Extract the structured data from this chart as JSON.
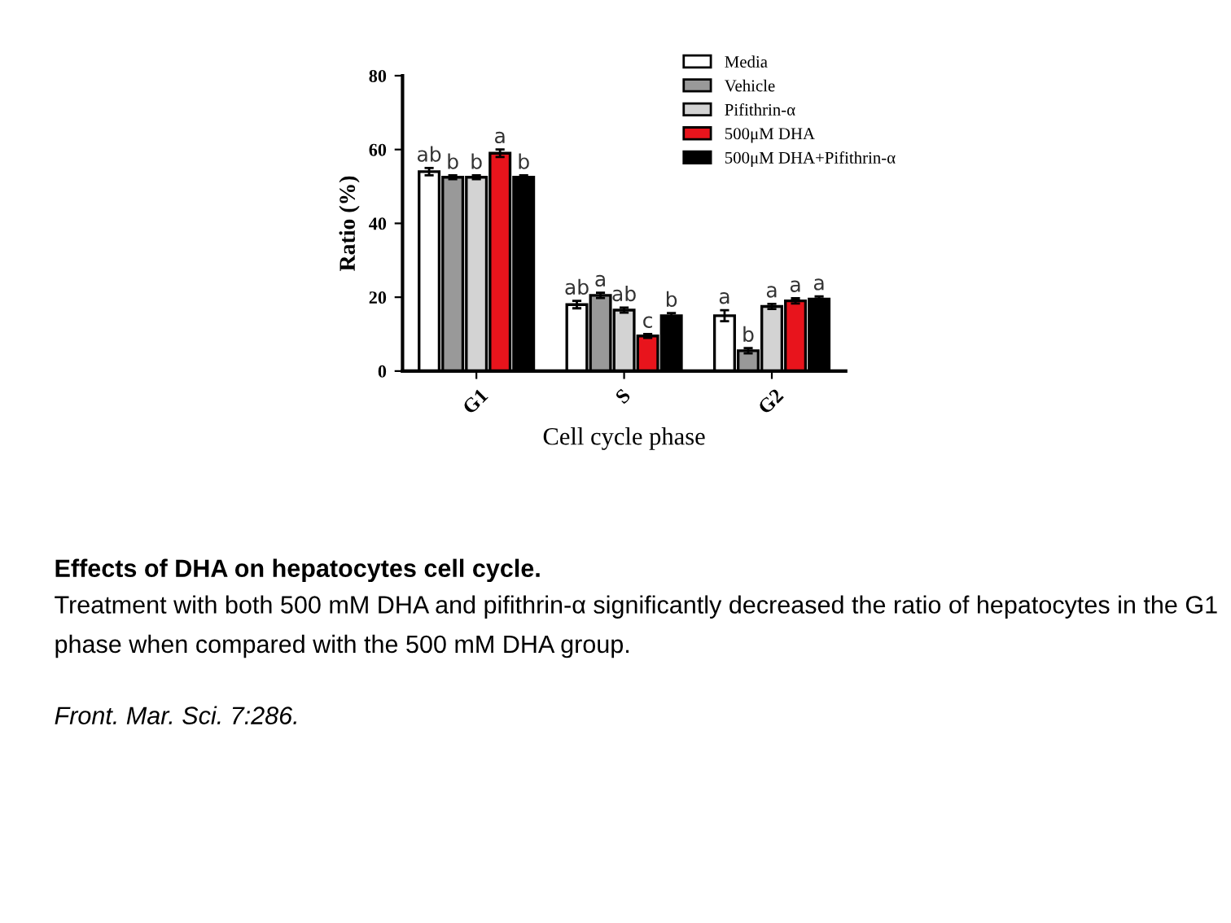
{
  "chart_data": {
    "type": "bar",
    "title": "Effects of DHA on hepatocytes cell cycle.",
    "xlabel": "Cell cycle phase",
    "ylabel": "Ratio (%)",
    "categories": [
      "G1",
      "S",
      "G2"
    ],
    "series": [
      {
        "name": "Media",
        "color": "#ffffff",
        "values": [
          54,
          18,
          15
        ],
        "errors": [
          1,
          1,
          1.5
        ],
        "value_labels": [
          "ab",
          "ab",
          "a"
        ]
      },
      {
        "name": "Vehicle",
        "color": "#999999",
        "values": [
          52.5,
          20.5,
          5.5
        ],
        "errors": [
          0.5,
          0.7,
          0.7
        ],
        "value_labels": [
          "b",
          "a",
          "b"
        ]
      },
      {
        "name": "Pifithrin-α",
        "color": "#d3d3d3",
        "values": [
          52.5,
          16.5,
          17.5
        ],
        "errors": [
          0.5,
          0.7,
          0.7
        ],
        "value_labels": [
          "b",
          "ab",
          "a"
        ]
      },
      {
        "name": "500μM DHA",
        "color": "#e8141c",
        "values": [
          59,
          9.5,
          19
        ],
        "errors": [
          1,
          0.5,
          0.7
        ],
        "value_labels": [
          "a",
          "c",
          "a"
        ]
      },
      {
        "name": "500μM DHA+Pifithrin-α",
        "color": "#000000",
        "values": [
          52.5,
          15,
          19.5
        ],
        "errors": [
          0.5,
          0.7,
          0.7
        ],
        "value_labels": [
          "b",
          "b",
          "a"
        ]
      }
    ],
    "ylim": [
      0,
      80
    ],
    "yticks": [
      0,
      20,
      40,
      60,
      80
    ],
    "legend": "top right",
    "annotations": [
      "Treatment with both 500 mM DHA and pifithrin-α significantly decreased the ratio of hepatocytes in the G1 phase when compared with the 500 mM DHA group.",
      "Front. Mar. Sci. 7:286."
    ]
  }
}
